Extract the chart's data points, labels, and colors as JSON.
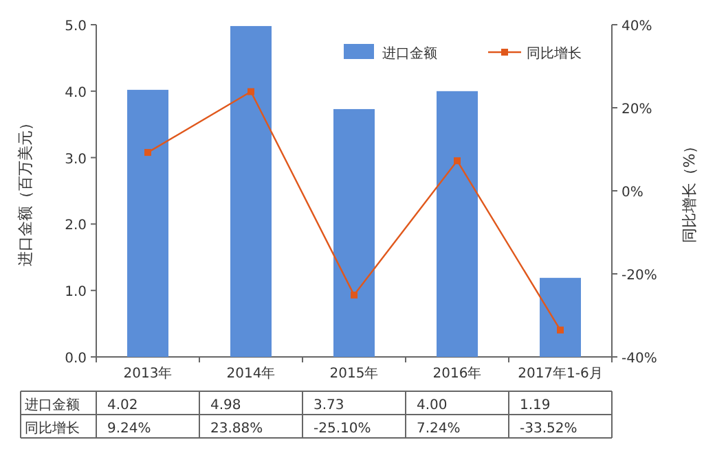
{
  "chart_data": {
    "type": "bar",
    "categories": [
      "2013年",
      "2014年",
      "2015年",
      "2016年",
      "2017年1-6月"
    ],
    "series": [
      {
        "name": "进口金额",
        "color": "#5b8ed8",
        "values": [
          4.02,
          4.98,
          3.73,
          4.0,
          1.19
        ],
        "value_labels": [
          "4.02",
          "4.98",
          "3.73",
          "4.00",
          "1.19"
        ]
      },
      {
        "name": "同比增长",
        "type": "line",
        "axis": "y2",
        "color": "#e0581c",
        "values": [
          9.24,
          23.88,
          -25.1,
          7.24,
          -33.52
        ],
        "value_labels": [
          "9.24%",
          "23.88%",
          "-25.10%",
          "7.24%",
          "-33.52%"
        ]
      }
    ],
    "ylabel": "进口金额（百万美元）",
    "y2label": "同比增长（%）",
    "ylim": [
      0,
      5
    ],
    "yticks": [
      "0.0",
      "1.0",
      "2.0",
      "3.0",
      "4.0",
      "5.0"
    ],
    "y2lim": [
      -40,
      40
    ],
    "y2ticks": [
      {
        "value": -40,
        "label": "-40%"
      },
      {
        "value": -20,
        "label": "-20%"
      },
      {
        "value": 0,
        "label": "0%"
      },
      {
        "value": 20,
        "label": "20%"
      },
      {
        "value": 40,
        "label": "40%"
      }
    ],
    "legend": "top right",
    "marker": "square",
    "grid": false
  }
}
